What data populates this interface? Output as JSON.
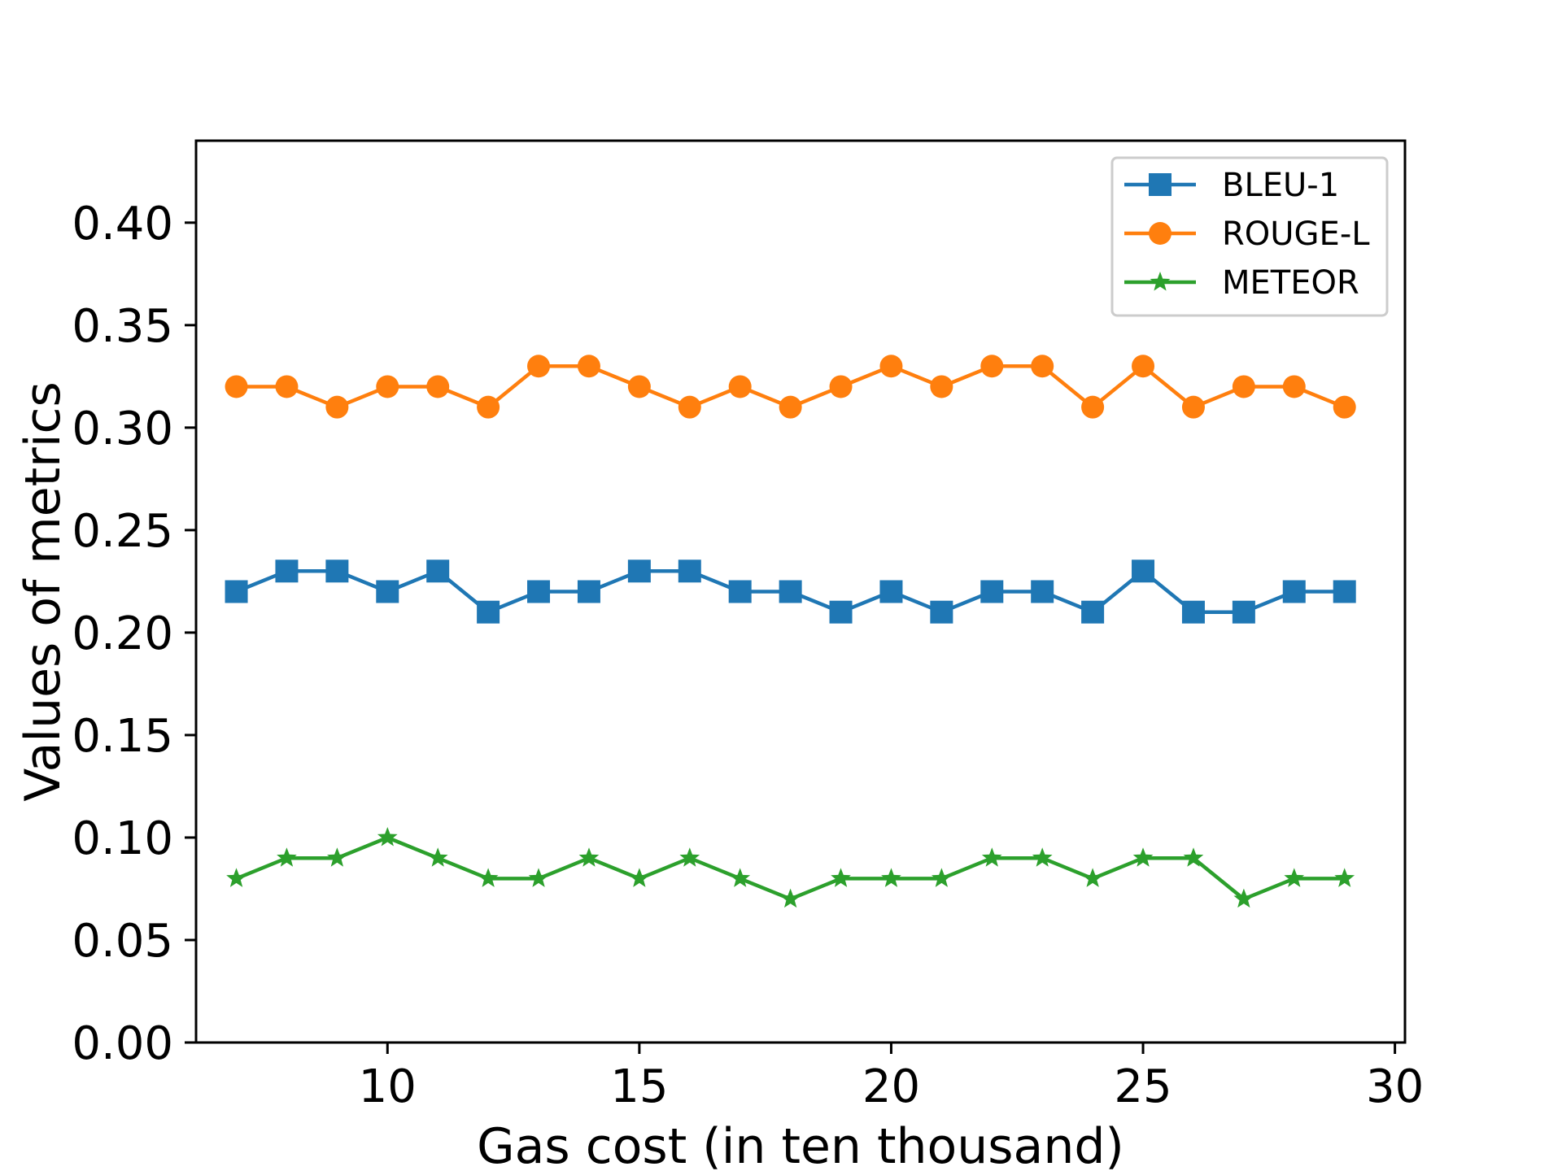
{
  "chart_data": {
    "type": "line",
    "title": "",
    "xlabel": "Gas cost (in ten thousand)",
    "ylabel": "Values of metrics",
    "xlim": [
      6.2,
      30.2
    ],
    "ylim": [
      0.0,
      0.44
    ],
    "x_ticks": [
      10,
      15,
      20,
      25,
      30
    ],
    "x_tick_labels": [
      "10",
      "15",
      "20",
      "25",
      "30"
    ],
    "y_ticks": [
      0.0,
      0.05,
      0.1,
      0.15,
      0.2,
      0.25,
      0.3,
      0.35,
      0.4
    ],
    "y_tick_labels": [
      "0.00",
      "0.05",
      "0.10",
      "0.15",
      "0.20",
      "0.25",
      "0.30",
      "0.35",
      "0.40"
    ],
    "grid": false,
    "legend_position": "top-right",
    "x": [
      7,
      8,
      9,
      10,
      11,
      12,
      13,
      14,
      15,
      16,
      17,
      18,
      19,
      20,
      21,
      22,
      23,
      24,
      25,
      26,
      27,
      28,
      29
    ],
    "series": [
      {
        "name": "BLEU-1",
        "color": "#1f77b4",
        "marker": "square",
        "values": [
          0.22,
          0.23,
          0.23,
          0.22,
          0.23,
          0.21,
          0.22,
          0.22,
          0.23,
          0.23,
          0.22,
          0.22,
          0.21,
          0.22,
          0.21,
          0.22,
          0.22,
          0.21,
          0.23,
          0.21,
          0.21,
          0.22,
          0.22
        ]
      },
      {
        "name": "ROUGE-L",
        "color": "#ff7f0e",
        "marker": "circle",
        "values": [
          0.32,
          0.32,
          0.31,
          0.32,
          0.32,
          0.31,
          0.33,
          0.33,
          0.32,
          0.31,
          0.32,
          0.31,
          0.32,
          0.33,
          0.32,
          0.33,
          0.33,
          0.31,
          0.33,
          0.31,
          0.32,
          0.32,
          0.31
        ]
      },
      {
        "name": "METEOR",
        "color": "#2ca02c",
        "marker": "star",
        "values": [
          0.08,
          0.09,
          0.09,
          0.1,
          0.09,
          0.08,
          0.08,
          0.09,
          0.08,
          0.09,
          0.08,
          0.07,
          0.08,
          0.08,
          0.08,
          0.09,
          0.09,
          0.08,
          0.09,
          0.09,
          0.07,
          0.08,
          0.08
        ]
      }
    ]
  }
}
